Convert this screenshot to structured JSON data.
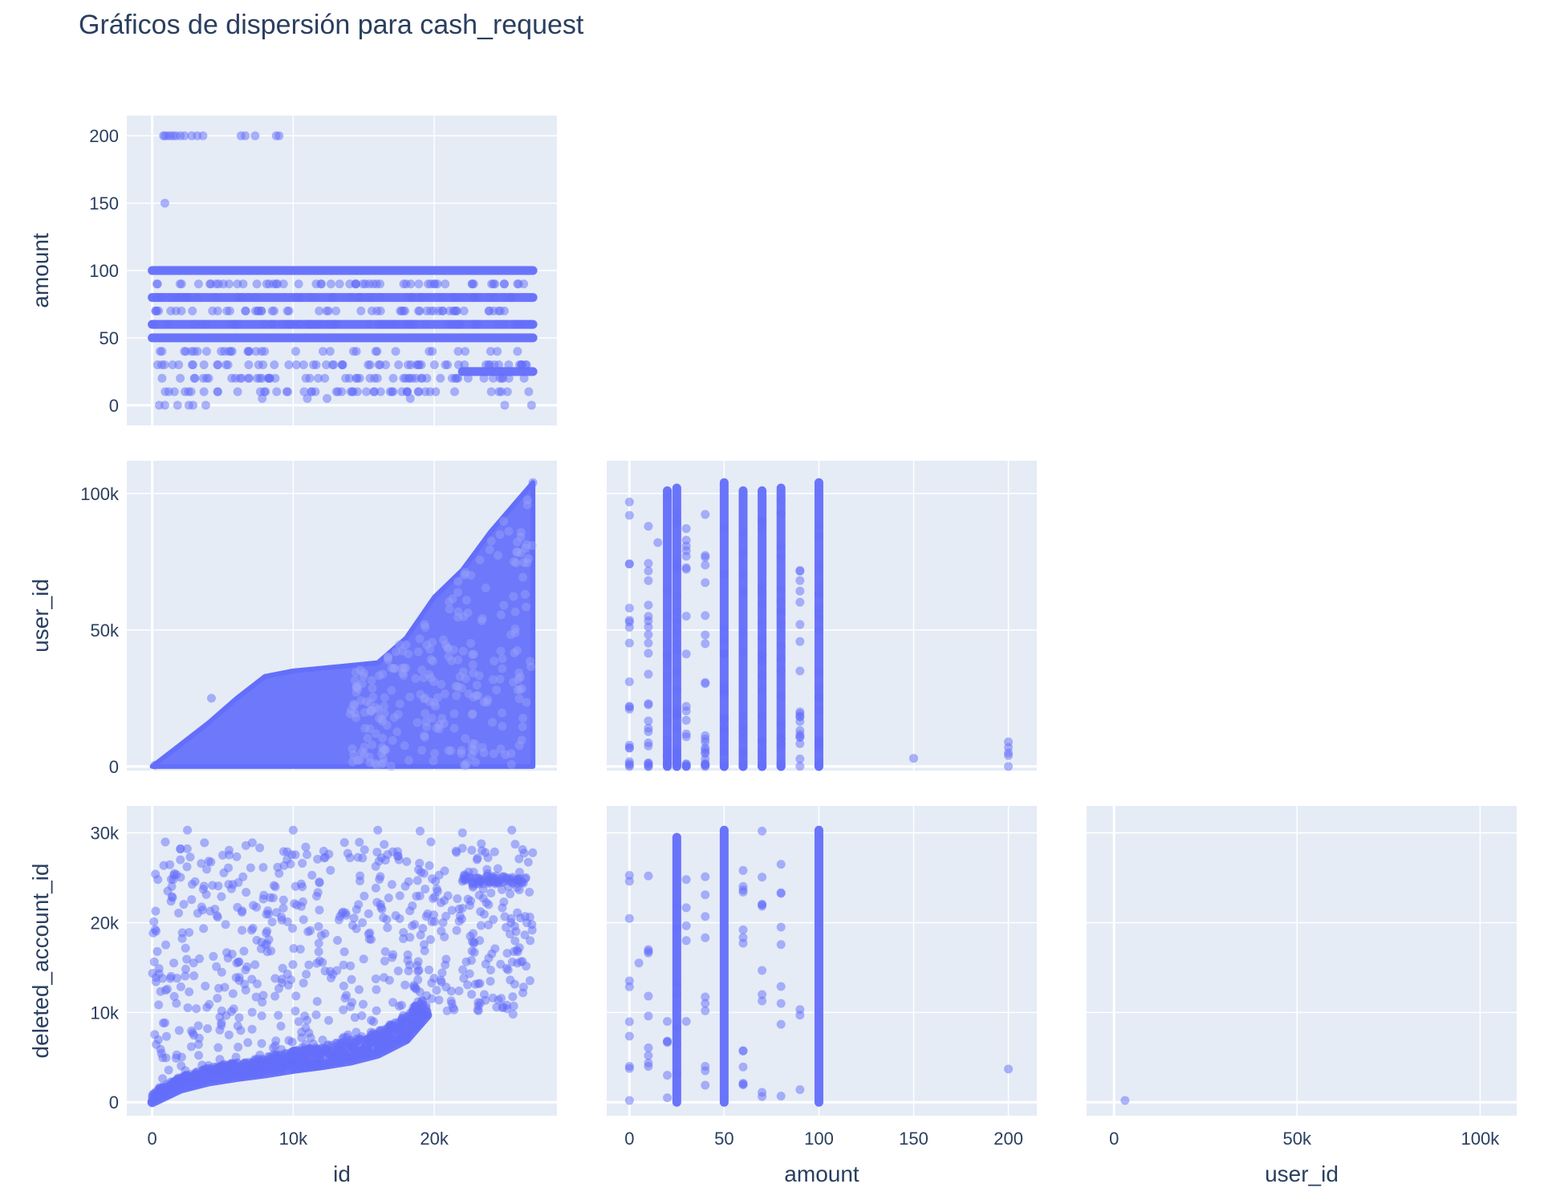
{
  "title": "Gráficos de dispersión para cash_request",
  "colors": {
    "marker": "#636efa",
    "plot_background": "#e5ecf6",
    "grid": "#ffffff",
    "text": "#2a3f5f"
  },
  "chart_data": {
    "type": "scatter",
    "title": "Gráficos de dispersión para cash_request",
    "layout": "lower-triangular scatter matrix",
    "grid": true,
    "legend": "none",
    "marker_opacity": 0.5,
    "panels": [
      {
        "row": 0,
        "col": 0,
        "x_field": "id",
        "y_field": "amount",
        "xlabel": "",
        "ylabel": "amount",
        "xlim": [
          -1800,
          28700
        ],
        "ylim": [
          -15,
          215
        ],
        "xticks": [
          0,
          10000,
          20000
        ],
        "xticklabels": [
          "",
          "",
          ""
        ],
        "yticks": [
          0,
          50,
          100,
          150,
          200
        ],
        "yticklabels": [
          "0",
          "50",
          "100",
          "150",
          "200"
        ],
        "bands": [
          {
            "x_range": [
              0,
              27000
            ],
            "y": 100
          },
          {
            "x_range": [
              0,
              27000
            ],
            "y": 50
          },
          {
            "x_range": [
              0,
              27000
            ],
            "y": 80
          },
          {
            "x_range": [
              0,
              27000
            ],
            "y": 60
          },
          {
            "x_range": [
              22000,
              27000
            ],
            "y": 25
          }
        ],
        "points": [
          [
            800,
            200
          ],
          [
            900,
            200
          ],
          [
            1100,
            200
          ],
          [
            1300,
            200
          ],
          [
            1500,
            200
          ],
          [
            1700,
            200
          ],
          [
            2000,
            200
          ],
          [
            2300,
            200
          ],
          [
            2800,
            200
          ],
          [
            3200,
            200
          ],
          [
            3600,
            200
          ],
          [
            6300,
            200
          ],
          [
            6600,
            200
          ],
          [
            7300,
            200
          ],
          [
            8800,
            200
          ],
          [
            9000,
            200
          ],
          [
            900,
            150
          ],
          [
            500,
            0
          ],
          [
            900,
            0
          ],
          [
            1800,
            0
          ],
          [
            2600,
            0
          ],
          [
            2900,
            0
          ],
          [
            3800,
            0
          ],
          [
            7800,
            5
          ],
          [
            11000,
            5
          ],
          [
            12400,
            5
          ],
          [
            18300,
            5
          ],
          [
            25000,
            0
          ],
          [
            26900,
            0
          ]
        ]
      },
      {
        "row": 1,
        "col": 0,
        "x_field": "id",
        "y_field": "user_id",
        "xlabel": "",
        "ylabel": "user_id",
        "xlim": [
          -1800,
          28700
        ],
        "ylim": [
          -1500,
          112000
        ],
        "xticks": [
          0,
          10000,
          20000
        ],
        "xticklabels": [
          "",
          "",
          ""
        ],
        "yticks": [
          0,
          50000,
          100000
        ],
        "yticklabels": [
          "0",
          "50k",
          "100k"
        ],
        "upper_envelope": [
          [
            0,
            0
          ],
          [
            2000,
            8000
          ],
          [
            4000,
            16000
          ],
          [
            6000,
            25000
          ],
          [
            8000,
            33000
          ],
          [
            10000,
            35000
          ],
          [
            14000,
            37000
          ],
          [
            16000,
            38000
          ],
          [
            18000,
            47000
          ],
          [
            20000,
            62000
          ],
          [
            22000,
            72000
          ],
          [
            24000,
            86000
          ],
          [
            26000,
            98000
          ],
          [
            27000,
            104000
          ]
        ],
        "points": [
          [
            4200,
            25000
          ],
          [
            200,
            500
          ],
          [
            27000,
            104000
          ]
        ]
      },
      {
        "row": 1,
        "col": 1,
        "x_field": "amount",
        "y_field": "user_id",
        "xlabel": "",
        "ylabel": "",
        "xlim": [
          -12,
          215
        ],
        "ylim": [
          -1500,
          112000
        ],
        "xticks": [
          0,
          50,
          100,
          150,
          200
        ],
        "xticklabels": [
          "",
          "",
          "",
          "",
          ""
        ],
        "yticks": [
          0,
          50000,
          100000
        ],
        "yticklabels": [
          "",
          "",
          ""
        ],
        "columns": [
          [
            20,
            0,
            101000
          ],
          [
            25,
            0,
            102000
          ],
          [
            50,
            0,
            104000
          ],
          [
            60,
            0,
            101000
          ],
          [
            70,
            0,
            101000
          ],
          [
            80,
            0,
            102000
          ],
          [
            100,
            0,
            104000
          ]
        ],
        "points": [
          [
            0,
            1000
          ],
          [
            0,
            51000
          ],
          [
            0,
            92000
          ],
          [
            10,
            14000
          ],
          [
            10,
            55000
          ],
          [
            10,
            88000
          ],
          [
            15,
            82000
          ],
          [
            30,
            77000
          ],
          [
            40,
            9000
          ],
          [
            40,
            45000
          ],
          [
            90,
            20000
          ],
          [
            90,
            35000
          ],
          [
            90,
            52000
          ],
          [
            150,
            3000
          ],
          [
            200,
            0
          ],
          [
            200,
            4000
          ],
          [
            200,
            5000
          ],
          [
            200,
            7000
          ],
          [
            200,
            9000
          ]
        ]
      },
      {
        "row": 2,
        "col": 0,
        "x_field": "id",
        "y_field": "deleted_account_id",
        "xlabel": "id",
        "ylabel": "deleted_account_id",
        "xlim": [
          -1800,
          28700
        ],
        "ylim": [
          -1500,
          33000
        ],
        "xticks": [
          0,
          10000,
          20000
        ],
        "xticklabels": [
          "0",
          "10k",
          "20k"
        ],
        "yticks": [
          0,
          10000,
          20000,
          30000
        ],
        "yticklabels": [
          "0",
          "10k",
          "20k",
          "30k"
        ],
        "curve": [
          [
            0,
            0
          ],
          [
            2000,
            1500
          ],
          [
            4000,
            2300
          ],
          [
            6000,
            2800
          ],
          [
            8000,
            3200
          ],
          [
            10000,
            3700
          ],
          [
            12000,
            4100
          ],
          [
            14000,
            4600
          ],
          [
            16000,
            5400
          ],
          [
            18000,
            7000
          ],
          [
            19500,
            9700
          ]
        ],
        "points": [
          [
            2500,
            30300
          ],
          [
            10000,
            30300
          ],
          [
            16000,
            30300
          ],
          [
            19000,
            30200
          ],
          [
            22000,
            30000
          ],
          [
            25500,
            30300
          ],
          [
            26500,
            25000
          ],
          [
            26800,
            18000
          ],
          [
            400,
            24800
          ],
          [
            1500,
            24800
          ],
          [
            22000,
            24600
          ],
          [
            24000,
            24700
          ],
          [
            5000,
            27500
          ],
          [
            2000,
            27000
          ],
          [
            17500,
            27000
          ]
        ]
      },
      {
        "row": 2,
        "col": 1,
        "x_field": "amount",
        "y_field": "deleted_account_id",
        "xlabel": "amount",
        "ylabel": "",
        "xlim": [
          -12,
          215
        ],
        "ylim": [
          -1500,
          33000
        ],
        "xticks": [
          0,
          50,
          100,
          150,
          200
        ],
        "xticklabels": [
          "0",
          "50",
          "100",
          "150",
          "200"
        ],
        "yticks": [
          0,
          10000,
          20000,
          30000
        ],
        "yticklabels": [
          "",
          "",
          "",
          ""
        ],
        "columns": [
          [
            50,
            0,
            30300
          ],
          [
            100,
            0,
            30300
          ],
          [
            25,
            0,
            29500
          ]
        ],
        "points": [
          [
            0,
            4000
          ],
          [
            0,
            200
          ],
          [
            5,
            15500
          ],
          [
            10,
            25200
          ],
          [
            10,
            17000
          ],
          [
            10,
            9600
          ],
          [
            10,
            5200
          ],
          [
            20,
            500
          ],
          [
            20,
            3000
          ],
          [
            20,
            6800
          ],
          [
            20,
            9000
          ],
          [
            30,
            9000
          ],
          [
            30,
            24800
          ],
          [
            40,
            4000
          ],
          [
            40,
            11000
          ],
          [
            60,
            19200
          ],
          [
            60,
            2000
          ],
          [
            70,
            30200
          ],
          [
            70,
            22000
          ],
          [
            70,
            12000
          ],
          [
            80,
            26500
          ],
          [
            80,
            19500
          ],
          [
            80,
            11000
          ],
          [
            90,
            9700
          ],
          [
            200,
            3700
          ]
        ]
      },
      {
        "row": 2,
        "col": 2,
        "x_field": "user_id",
        "y_field": "deleted_account_id",
        "xlabel": "user_id",
        "ylabel": "",
        "xlim": [
          -7500,
          110000
        ],
        "ylim": [
          -1500,
          33000
        ],
        "xticks": [
          0,
          50000,
          100000
        ],
        "xticklabels": [
          "0",
          "50k",
          "100k"
        ],
        "yticks": [
          0,
          10000,
          20000,
          30000
        ],
        "yticklabels": [
          "",
          "",
          "",
          ""
        ],
        "points": [
          [
            3000,
            200
          ]
        ]
      }
    ]
  }
}
